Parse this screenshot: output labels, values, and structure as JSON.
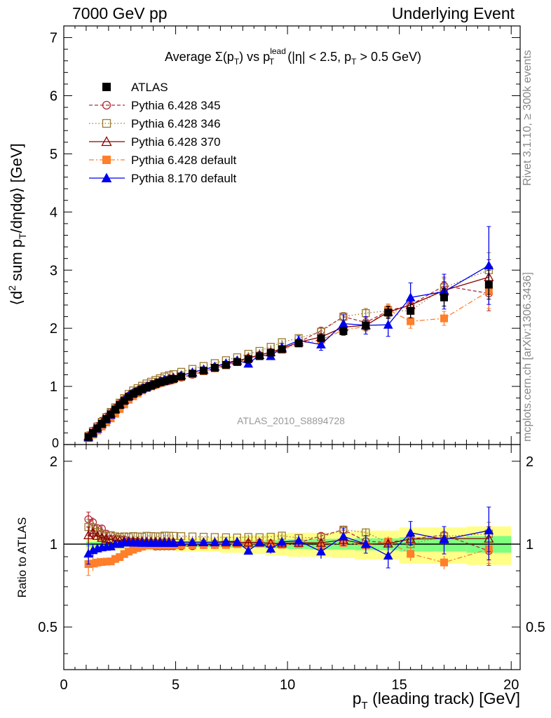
{
  "header": {
    "left": "7000 GeV pp",
    "right": "Underlying Event"
  },
  "sidebar_texts": {
    "rivet": "Rivet 3.1.10, ≥ 300k events",
    "mcplots": "mcplots.cern.ch [arXiv:1306.3436]"
  },
  "colors": {
    "atlas": "#000000",
    "p345": "#b22b3a",
    "p346": "#9a7a30",
    "p370": "#8b0000",
    "pdef": "#ff7f2a",
    "p8": "#0000ee",
    "band_inner": "#7fff7f",
    "band_outer": "#ffff88"
  },
  "chart_data": [
    {
      "type": "line",
      "title": "Average Σ(pT) vs pT lead (|η| < 2.5, pT > 0.5 GeV)",
      "title_parts": {
        "pre": "Average Σ(p",
        "sub1": "T",
        "mid": ") vs p",
        "sup": "lead",
        "sub2": "T",
        "post": " (|η| < 2.5, p",
        "sub3": "T",
        "end": " > 0.5 GeV)"
      },
      "ylabel": "⟨d² sum pT/dηdφ⟩ [GeV]",
      "ylabel_parts": {
        "pre": "⟨d",
        "sup": "2",
        "mid": " sum p",
        "sub": "T",
        "end": "/dηdφ⟩ [GeV]"
      },
      "watermark": "ATLAS_2010_S8894728",
      "xlim": [
        0,
        20.4
      ],
      "ylim": [
        0,
        7.2
      ],
      "ytick_labels": [
        "1",
        "2",
        "3",
        "4",
        "5",
        "6",
        "7"
      ],
      "legend_position": "top-left",
      "x": [
        1.1,
        1.3,
        1.5,
        1.7,
        1.9,
        2.1,
        2.3,
        2.5,
        2.7,
        2.9,
        3.1,
        3.3,
        3.5,
        3.7,
        3.9,
        4.1,
        4.3,
        4.5,
        4.7,
        4.9,
        5.25,
        5.75,
        6.25,
        6.75,
        7.25,
        7.75,
        8.25,
        8.75,
        9.25,
        9.75,
        10.5,
        11.5,
        12.5,
        13.5,
        14.5,
        15.5,
        17.0,
        19.0
      ],
      "series": [
        {
          "name": "ATLAS",
          "key": "atlas",
          "marker": "square-filled",
          "line": "none",
          "values": [
            0.13,
            0.2,
            0.28,
            0.36,
            0.44,
            0.52,
            0.6,
            0.68,
            0.75,
            0.82,
            0.87,
            0.91,
            0.95,
            0.98,
            1.01,
            1.04,
            1.07,
            1.09,
            1.11,
            1.13,
            1.17,
            1.22,
            1.27,
            1.32,
            1.37,
            1.42,
            1.47,
            1.52,
            1.58,
            1.64,
            1.74,
            1.83,
            1.95,
            2.05,
            2.27,
            2.3,
            2.53,
            2.75
          ],
          "errors": [
            0.01,
            0.01,
            0.01,
            0.01,
            0.01,
            0.01,
            0.01,
            0.01,
            0.01,
            0.01,
            0.01,
            0.01,
            0.01,
            0.01,
            0.01,
            0.01,
            0.01,
            0.01,
            0.01,
            0.01,
            0.02,
            0.02,
            0.02,
            0.02,
            0.02,
            0.02,
            0.03,
            0.03,
            0.03,
            0.04,
            0.05,
            0.06,
            0.07,
            0.08,
            0.1,
            0.12,
            0.15,
            0.25
          ]
        },
        {
          "name": "Pythia 6.428 345",
          "key": "p345",
          "marker": "circle-open",
          "line": "dashed",
          "values": [
            0.16,
            0.24,
            0.32,
            0.41,
            0.48,
            0.56,
            0.63,
            0.71,
            0.78,
            0.84,
            0.89,
            0.93,
            0.96,
            0.98,
            1.0,
            1.02,
            1.05,
            1.07,
            1.09,
            1.11,
            1.15,
            1.2,
            1.26,
            1.31,
            1.37,
            1.42,
            1.48,
            1.54,
            1.59,
            1.64,
            1.76,
            1.96,
            2.2,
            2.1,
            2.3,
            2.4,
            2.73,
            2.6
          ],
          "errors": [
            0.01,
            0.01,
            0.01,
            0.01,
            0.01,
            0.01,
            0.01,
            0.01,
            0.01,
            0.01,
            0.01,
            0.01,
            0.01,
            0.01,
            0.01,
            0.01,
            0.01,
            0.01,
            0.01,
            0.01,
            0.02,
            0.02,
            0.02,
            0.02,
            0.02,
            0.02,
            0.03,
            0.03,
            0.03,
            0.04,
            0.05,
            0.06,
            0.07,
            0.08,
            0.1,
            0.12,
            0.15,
            0.3
          ]
        },
        {
          "name": "Pythia 6.428 346",
          "key": "p346",
          "marker": "square-open",
          "line": "dotted",
          "values": [
            0.15,
            0.23,
            0.31,
            0.39,
            0.47,
            0.56,
            0.64,
            0.72,
            0.8,
            0.87,
            0.93,
            0.97,
            1.01,
            1.05,
            1.08,
            1.11,
            1.14,
            1.17,
            1.19,
            1.21,
            1.25,
            1.3,
            1.35,
            1.4,
            1.45,
            1.5,
            1.56,
            1.61,
            1.68,
            1.76,
            1.83,
            1.94,
            2.2,
            2.26,
            2.3,
            2.3,
            2.7,
            3.0
          ],
          "errors": [
            0.01,
            0.01,
            0.01,
            0.01,
            0.01,
            0.01,
            0.01,
            0.01,
            0.01,
            0.01,
            0.01,
            0.01,
            0.01,
            0.01,
            0.01,
            0.01,
            0.01,
            0.01,
            0.01,
            0.01,
            0.02,
            0.02,
            0.02,
            0.02,
            0.02,
            0.02,
            0.03,
            0.03,
            0.03,
            0.04,
            0.05,
            0.06,
            0.07,
            0.08,
            0.1,
            0.12,
            0.15,
            0.3
          ]
        },
        {
          "name": "Pythia 6.428 370",
          "key": "p370",
          "marker": "triangle-open",
          "line": "solid",
          "values": [
            0.14,
            0.22,
            0.3,
            0.38,
            0.46,
            0.54,
            0.62,
            0.7,
            0.77,
            0.84,
            0.89,
            0.93,
            0.97,
            1.0,
            1.03,
            1.06,
            1.09,
            1.11,
            1.13,
            1.15,
            1.19,
            1.24,
            1.29,
            1.34,
            1.39,
            1.44,
            1.49,
            1.54,
            1.59,
            1.65,
            1.76,
            1.85,
            2.02,
            2.05,
            2.28,
            2.4,
            2.65,
            2.88
          ],
          "errors": [
            0.01,
            0.01,
            0.01,
            0.01,
            0.01,
            0.01,
            0.01,
            0.01,
            0.01,
            0.01,
            0.01,
            0.01,
            0.01,
            0.01,
            0.01,
            0.01,
            0.01,
            0.01,
            0.01,
            0.01,
            0.02,
            0.02,
            0.02,
            0.02,
            0.02,
            0.02,
            0.03,
            0.03,
            0.03,
            0.04,
            0.05,
            0.06,
            0.07,
            0.08,
            0.1,
            0.12,
            0.15,
            0.3
          ]
        },
        {
          "name": "Pythia 6.428 default",
          "key": "pdef",
          "marker": "square-filled",
          "line": "dashdot",
          "values": [
            0.11,
            0.17,
            0.24,
            0.31,
            0.38,
            0.45,
            0.53,
            0.61,
            0.69,
            0.77,
            0.83,
            0.88,
            0.93,
            0.97,
            1.0,
            1.03,
            1.06,
            1.08,
            1.1,
            1.12,
            1.16,
            1.21,
            1.26,
            1.31,
            1.36,
            1.42,
            1.47,
            1.53,
            1.58,
            1.63,
            1.74,
            1.8,
            1.97,
            2.03,
            2.32,
            2.12,
            2.17,
            2.64
          ],
          "errors": [
            0.01,
            0.01,
            0.01,
            0.01,
            0.01,
            0.01,
            0.01,
            0.01,
            0.01,
            0.01,
            0.01,
            0.01,
            0.01,
            0.01,
            0.01,
            0.01,
            0.01,
            0.01,
            0.01,
            0.01,
            0.02,
            0.02,
            0.02,
            0.02,
            0.02,
            0.02,
            0.03,
            0.03,
            0.03,
            0.04,
            0.05,
            0.06,
            0.07,
            0.08,
            0.1,
            0.12,
            0.12,
            0.3
          ]
        },
        {
          "name": "Pythia 8.170 default",
          "key": "p8",
          "marker": "triangle-filled",
          "line": "solid",
          "values": [
            0.12,
            0.19,
            0.27,
            0.35,
            0.43,
            0.51,
            0.6,
            0.68,
            0.76,
            0.83,
            0.88,
            0.92,
            0.96,
            0.99,
            1.02,
            1.05,
            1.08,
            1.1,
            1.12,
            1.14,
            1.19,
            1.24,
            1.29,
            1.34,
            1.4,
            1.45,
            1.39,
            1.54,
            1.52,
            1.67,
            1.79,
            1.72,
            2.08,
            2.05,
            2.06,
            2.53,
            2.63,
            3.08
          ],
          "errors": [
            0.01,
            0.01,
            0.01,
            0.01,
            0.01,
            0.01,
            0.01,
            0.01,
            0.01,
            0.01,
            0.01,
            0.01,
            0.01,
            0.01,
            0.01,
            0.01,
            0.01,
            0.01,
            0.01,
            0.01,
            0.02,
            0.02,
            0.02,
            0.02,
            0.02,
            0.02,
            0.04,
            0.05,
            0.06,
            0.07,
            0.08,
            0.1,
            0.15,
            0.15,
            0.2,
            0.25,
            0.3,
            0.67
          ]
        }
      ]
    },
    {
      "type": "line",
      "ylabel": "Ratio to ATLAS",
      "xlabel": "pT (leading track) [GeV]",
      "xlabel_parts": {
        "pre": "p",
        "sub": "T",
        "end": " (leading track) [GeV]"
      },
      "xlim": [
        0,
        20.4
      ],
      "ylim": [
        0.35,
        2.3
      ],
      "xtick_labels": [
        "0",
        "5",
        "10",
        "15",
        "20"
      ],
      "ytick_labels": [
        "0.5",
        "1",
        "2"
      ],
      "band_x_edges": [
        1.0,
        5.0,
        6.0,
        7.0,
        8.0,
        9.0,
        10.0,
        11.0,
        12.0,
        13.0,
        14.0,
        15.0,
        16.0,
        18.0,
        20.0
      ],
      "band_inner_half": [
        0.02,
        0.025,
        0.025,
        0.03,
        0.03,
        0.035,
        0.04,
        0.045,
        0.045,
        0.05,
        0.05,
        0.06,
        0.06,
        0.07
      ],
      "band_outer_half": [
        0.05,
        0.06,
        0.06,
        0.07,
        0.08,
        0.09,
        0.1,
        0.1,
        0.11,
        0.12,
        0.12,
        0.15,
        0.15,
        0.16
      ]
    }
  ]
}
